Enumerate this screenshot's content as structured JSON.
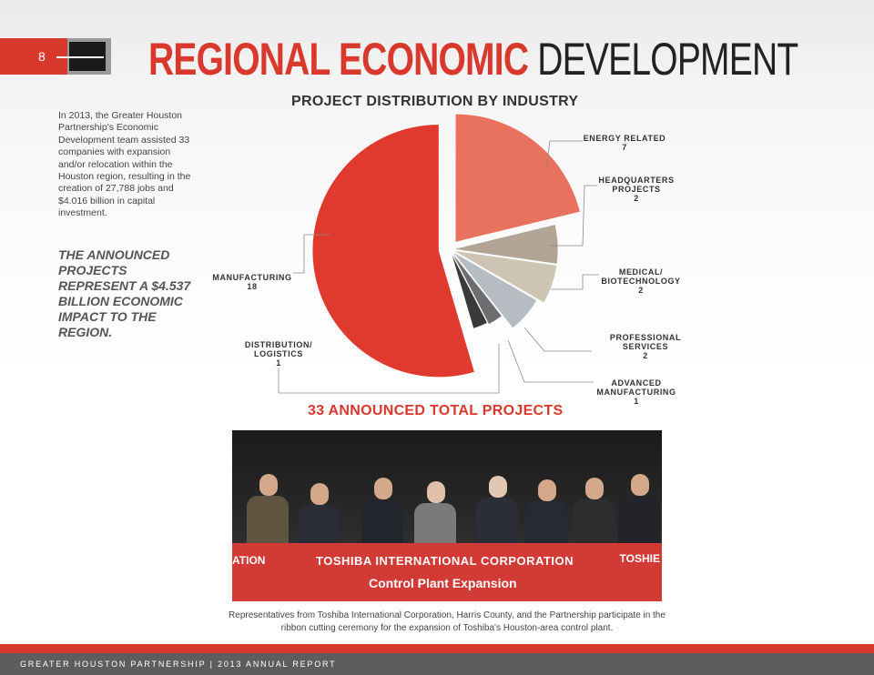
{
  "page_number": "8",
  "title": {
    "part1": "REGIONAL ECONOMIC",
    "part2": "DEVELOPMENT"
  },
  "intro_text": "In 2013, the Greater Houston Partnership's Economic Development team assisted 33 companies with expansion and/or relocation within the Houston region, resulting in the creation of 27,788 jobs and $4.016 billion in capital investment.",
  "impact_text": "THE ANNOUNCED PROJECTS REPRESENT A $4.537 BILLION ECONOMIC IMPACT TO THE REGION.",
  "chart_data": {
    "type": "pie",
    "title": "PROJECT DISTRIBUTION BY INDUSTRY",
    "total_label": "33 ANNOUNCED TOTAL PROJECTS",
    "slices": [
      {
        "label_lines": [
          "ENERGY RELATED"
        ],
        "value": 7,
        "color": "#e8725e"
      },
      {
        "label_lines": [
          "HEADQUARTERS",
          "PROJECTS"
        ],
        "value": 2,
        "color": "#b2a595"
      },
      {
        "label_lines": [
          "MEDICAL/",
          "BIOTECHNOLOGY"
        ],
        "value": 2,
        "color": "#cdc4b3"
      },
      {
        "label_lines": [
          "PROFESSIONAL",
          "SERVICES"
        ],
        "value": 2,
        "color": "#b7bbc2"
      },
      {
        "label_lines": [
          "ADVANCED",
          "MANUFACTURING"
        ],
        "value": 1,
        "color": "#6e6e70"
      },
      {
        "label_lines": [
          "DISTRIBUTION/",
          "LOGISTICS"
        ],
        "value": 1,
        "color": "#3a3a3c"
      },
      {
        "label_lines": [
          "MANUFACTURING"
        ],
        "value": 18,
        "color": "#e0392e"
      }
    ]
  },
  "photo": {
    "banner_line1": "TOSHIBA INTERNATIONAL CORPORATION",
    "banner_line2": "Control Plant Expansion",
    "banner_left": "ATION",
    "banner_right": "TOSHIE"
  },
  "caption": "Representatives from Toshiba International Corporation, Harris County, and the Partnership participate in the ribbon cutting ceremony for the expansion of Toshiba's Houston-area control plant.",
  "footer": "GREATER HOUSTON PARTNERSHIP | 2013 ANNUAL REPORT"
}
